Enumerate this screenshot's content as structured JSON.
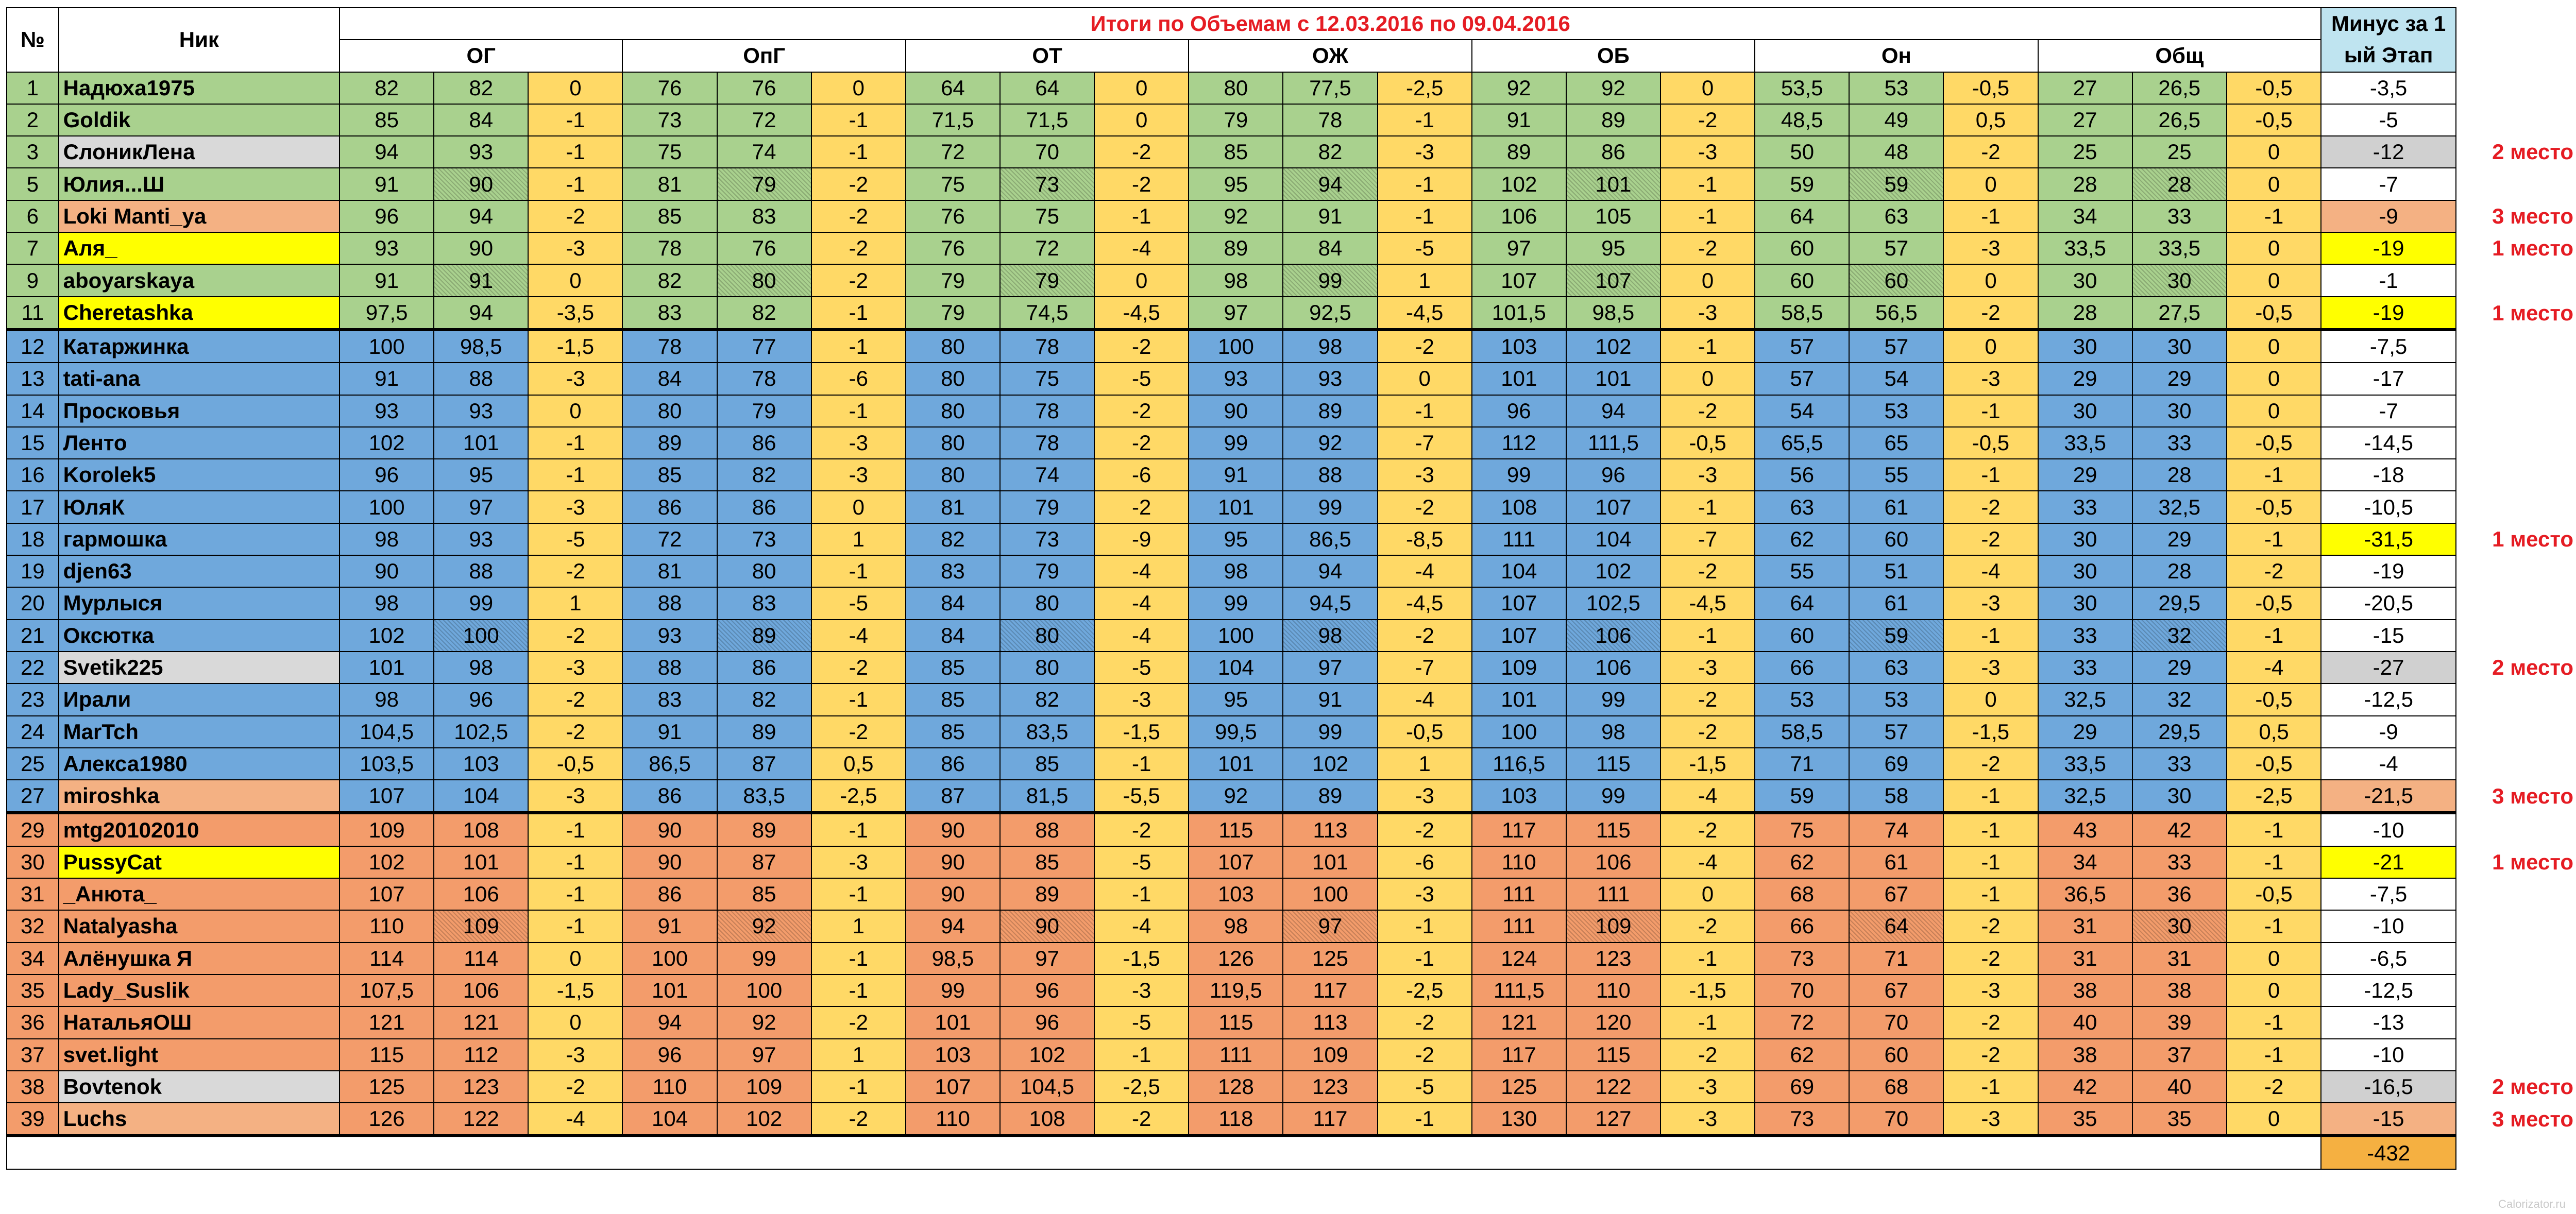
{
  "header": {
    "col_num": "№",
    "col_nick": "Ник",
    "title": "Итоги по Объемам с  12.03.2016 по 09.04.2016",
    "col_minus": "Минус за 1 ый Этап",
    "groups": [
      "ОГ",
      "ОпГ",
      "ОТ",
      "ОЖ",
      "ОБ",
      "Он",
      "Общ"
    ]
  },
  "colors": {
    "green": "#a9d18e",
    "blue": "#6fa8dc",
    "orange": "#f39c6b",
    "diff": "#ffd966",
    "highlight_yellow": "#ffff00",
    "highlight_gray": "#d0d0d0",
    "highlight_salmon": "#f4b183",
    "total": "#f5b041",
    "title_red": "#e51c23",
    "minus_header": "#bfe4f0"
  },
  "rows": [
    {
      "num": "1",
      "nick": "Надюха1975",
      "group": "green",
      "values": [
        "82",
        "82",
        "0",
        "76",
        "76",
        "0",
        "64",
        "64",
        "0",
        "80",
        "77,5",
        "-2,5",
        "92",
        "92",
        "0",
        "53,5",
        "53",
        "-0,5",
        "27",
        "26,5",
        "-0,5"
      ],
      "minus": "-3,5",
      "place": ""
    },
    {
      "num": "2",
      "nick": "Goldik",
      "group": "green",
      "values": [
        "85",
        "84",
        "-1",
        "73",
        "72",
        "-1",
        "71,5",
        "71,5",
        "0",
        "79",
        "78",
        "-1",
        "91",
        "89",
        "-2",
        "48,5",
        "49",
        "0,5",
        "27",
        "26,5",
        "-0,5"
      ],
      "minus": "-5",
      "place": ""
    },
    {
      "num": "3",
      "nick": "СлоникЛена",
      "group": "green",
      "nick_bg": "gray",
      "values": [
        "94",
        "93",
        "-1",
        "75",
        "74",
        "-1",
        "72",
        "70",
        "-2",
        "85",
        "82",
        "-3",
        "89",
        "86",
        "-3",
        "50",
        "48",
        "-2",
        "25",
        "25",
        "0"
      ],
      "minus": "-12",
      "minus_bg": "gray",
      "place": "2 место"
    },
    {
      "num": "5",
      "nick": "Юлия...Ш",
      "group": "green",
      "hatch": true,
      "values": [
        "91",
        "90",
        "-1",
        "81",
        "79",
        "-2",
        "75",
        "73",
        "-2",
        "95",
        "94",
        "-1",
        "102",
        "101",
        "-1",
        "59",
        "59",
        "0",
        "28",
        "28",
        "0"
      ],
      "minus": "-7",
      "place": ""
    },
    {
      "num": "6",
      "nick": "Loki Manti_ya",
      "group": "green",
      "nick_bg": "salmon",
      "values": [
        "96",
        "94",
        "-2",
        "85",
        "83",
        "-2",
        "76",
        "75",
        "-1",
        "92",
        "91",
        "-1",
        "106",
        "105",
        "-1",
        "64",
        "63",
        "-1",
        "34",
        "33",
        "-1"
      ],
      "minus": "-9",
      "minus_bg": "salmon",
      "place": "3 место"
    },
    {
      "num": "7",
      "nick": "Аля_",
      "group": "green",
      "nick_bg": "yellow",
      "values": [
        "93",
        "90",
        "-3",
        "78",
        "76",
        "-2",
        "76",
        "72",
        "-4",
        "89",
        "84",
        "-5",
        "97",
        "95",
        "-2",
        "60",
        "57",
        "-3",
        "33,5",
        "33,5",
        "0"
      ],
      "minus": "-19",
      "minus_bg": "yellow",
      "place": "1 место"
    },
    {
      "num": "9",
      "nick": "aboyarskaya",
      "group": "green",
      "hatch": true,
      "values": [
        "91",
        "91",
        "0",
        "82",
        "80",
        "-2",
        "79",
        "79",
        "0",
        "98",
        "99",
        "1",
        "107",
        "107",
        "0",
        "60",
        "60",
        "0",
        "30",
        "30",
        "0"
      ],
      "minus": "-1",
      "place": ""
    },
    {
      "num": "11",
      "nick": "Cheretashka",
      "group": "green",
      "nick_bg": "yellow",
      "values": [
        "97,5",
        "94",
        "-3,5",
        "83",
        "82",
        "-1",
        "79",
        "74,5",
        "-4,5",
        "97",
        "92,5",
        "-4,5",
        "101,5",
        "98,5",
        "-3",
        "58,5",
        "56,5",
        "-2",
        "28",
        "27,5",
        "-0,5"
      ],
      "minus": "-19",
      "minus_bg": "yellow",
      "place": "1 место"
    },
    {
      "num": "12",
      "nick": "Катаржинка",
      "group": "blue",
      "values": [
        "100",
        "98,5",
        "-1,5",
        "78",
        "77",
        "-1",
        "80",
        "78",
        "-2",
        "100",
        "98",
        "-2",
        "103",
        "102",
        "-1",
        "57",
        "57",
        "0",
        "30",
        "30",
        "0"
      ],
      "minus": "-7,5",
      "place": ""
    },
    {
      "num": "13",
      "nick": "tati-ana",
      "group": "blue",
      "values": [
        "91",
        "88",
        "-3",
        "84",
        "78",
        "-6",
        "80",
        "75",
        "-5",
        "93",
        "93",
        "0",
        "101",
        "101",
        "0",
        "57",
        "54",
        "-3",
        "29",
        "29",
        "0"
      ],
      "minus": "-17",
      "place": ""
    },
    {
      "num": "14",
      "nick": "Просковья",
      "group": "blue",
      "values": [
        "93",
        "93",
        "0",
        "80",
        "79",
        "-1",
        "80",
        "78",
        "-2",
        "90",
        "89",
        "-1",
        "96",
        "94",
        "-2",
        "54",
        "53",
        "-1",
        "30",
        "30",
        "0"
      ],
      "minus": "-7",
      "place": ""
    },
    {
      "num": "15",
      "nick": "Лento",
      "group": "blue",
      "values": [
        "102",
        "101",
        "-1",
        "89",
        "86",
        "-3",
        "80",
        "78",
        "-2",
        "99",
        "92",
        "-7",
        "112",
        "111,5",
        "-0,5",
        "65,5",
        "65",
        "-0,5",
        "33,5",
        "33",
        "-0,5"
      ],
      "minus": "-14,5",
      "place": ""
    },
    {
      "num": "16",
      "nick": "Korolek5",
      "group": "blue",
      "values": [
        "96",
        "95",
        "-1",
        "85",
        "82",
        "-3",
        "80",
        "74",
        "-6",
        "91",
        "88",
        "-3",
        "99",
        "96",
        "-3",
        "56",
        "55",
        "-1",
        "29",
        "28",
        "-1"
      ],
      "minus": "-18",
      "place": ""
    },
    {
      "num": "17",
      "nick": "ЮляК",
      "group": "blue",
      "values": [
        "100",
        "97",
        "-3",
        "86",
        "86",
        "0",
        "81",
        "79",
        "-2",
        "101",
        "99",
        "-2",
        "108",
        "107",
        "-1",
        "63",
        "61",
        "-2",
        "33",
        "32,5",
        "-0,5"
      ],
      "minus": "-10,5",
      "place": ""
    },
    {
      "num": "18",
      "nick": "гармошка",
      "group": "blue",
      "values": [
        "98",
        "93",
        "-5",
        "72",
        "73",
        "1",
        "82",
        "73",
        "-9",
        "95",
        "86,5",
        "-8,5",
        "111",
        "104",
        "-7",
        "62",
        "60",
        "-2",
        "30",
        "29",
        "-1"
      ],
      "minus": "-31,5",
      "minus_bg": "yellow",
      "place": "1 место"
    },
    {
      "num": "19",
      "nick": "djen63",
      "group": "blue",
      "values": [
        "90",
        "88",
        "-2",
        "81",
        "80",
        "-1",
        "83",
        "79",
        "-4",
        "98",
        "94",
        "-4",
        "104",
        "102",
        "-2",
        "55",
        "51",
        "-4",
        "30",
        "28",
        "-2"
      ],
      "minus": "-19",
      "place": ""
    },
    {
      "num": "20",
      "nick": "Мурлыся",
      "group": "blue",
      "values": [
        "98",
        "99",
        "1",
        "88",
        "83",
        "-5",
        "84",
        "80",
        "-4",
        "99",
        "94,5",
        "-4,5",
        "107",
        "102,5",
        "-4,5",
        "64",
        "61",
        "-3",
        "30",
        "29,5",
        "-0,5"
      ],
      "minus": "-20,5",
      "place": ""
    },
    {
      "num": "21",
      "nick": "Оксютка",
      "group": "blue",
      "hatch": true,
      "values": [
        "102",
        "100",
        "-2",
        "93",
        "89",
        "-4",
        "84",
        "80",
        "-4",
        "100",
        "98",
        "-2",
        "107",
        "106",
        "-1",
        "60",
        "59",
        "-1",
        "33",
        "32",
        "-1"
      ],
      "minus": "-15",
      "place": ""
    },
    {
      "num": "22",
      "nick": "Svetik225",
      "group": "blue",
      "nick_bg": "gray",
      "values": [
        "101",
        "98",
        "-3",
        "88",
        "86",
        "-2",
        "85",
        "80",
        "-5",
        "104",
        "97",
        "-7",
        "109",
        "106",
        "-3",
        "66",
        "63",
        "-3",
        "33",
        "29",
        "-4"
      ],
      "minus": "-27",
      "minus_bg": "gray",
      "place": "2 место"
    },
    {
      "num": "23",
      "nick": "Ирали",
      "group": "blue",
      "values": [
        "98",
        "96",
        "-2",
        "83",
        "82",
        "-1",
        "85",
        "82",
        "-3",
        "95",
        "91",
        "-4",
        "101",
        "99",
        "-2",
        "53",
        "53",
        "0",
        "32,5",
        "32",
        "-0,5"
      ],
      "minus": "-12,5",
      "place": ""
    },
    {
      "num": "24",
      "nick": "MarTch",
      "group": "blue",
      "values": [
        "104,5",
        "102,5",
        "-2",
        "91",
        "89",
        "-2",
        "85",
        "83,5",
        "-1,5",
        "99,5",
        "99",
        "-0,5",
        "100",
        "98",
        "-2",
        "58,5",
        "57",
        "-1,5",
        "29",
        "29,5",
        "0,5"
      ],
      "minus": "-9",
      "place": ""
    },
    {
      "num": "25",
      "nick": "Алекса1980",
      "group": "blue",
      "values": [
        "103,5",
        "103",
        "-0,5",
        "86,5",
        "87",
        "0,5",
        "86",
        "85",
        "-1",
        "101",
        "102",
        "1",
        "116,5",
        "115",
        "-1,5",
        "71",
        "69",
        "-2",
        "33,5",
        "33",
        "-0,5"
      ],
      "minus": "-4",
      "place": ""
    },
    {
      "num": "27",
      "nick": "miroshka",
      "group": "blue",
      "nick_bg": "salmon",
      "values": [
        "107",
        "104",
        "-3",
        "86",
        "83,5",
        "-2,5",
        "87",
        "81,5",
        "-5,5",
        "92",
        "89",
        "-3",
        "103",
        "99",
        "-4",
        "59",
        "58",
        "-1",
        "32,5",
        "30",
        "-2,5"
      ],
      "minus": "-21,5",
      "minus_bg": "salmon",
      "place": "3 место"
    },
    {
      "num": "29",
      "nick": "mtg20102010",
      "group": "orange",
      "values": [
        "109",
        "108",
        "-1",
        "90",
        "89",
        "-1",
        "90",
        "88",
        "-2",
        "115",
        "113",
        "-2",
        "117",
        "115",
        "-2",
        "75",
        "74",
        "-1",
        "43",
        "42",
        "-1"
      ],
      "minus": "-10",
      "place": ""
    },
    {
      "num": "30",
      "nick": "PussyCat",
      "group": "orange",
      "nick_bg": "yellow",
      "values": [
        "102",
        "101",
        "-1",
        "90",
        "87",
        "-3",
        "90",
        "85",
        "-5",
        "107",
        "101",
        "-6",
        "110",
        "106",
        "-4",
        "62",
        "61",
        "-1",
        "34",
        "33",
        "-1"
      ],
      "minus": "-21",
      "minus_bg": "yellow",
      "place": "1 место"
    },
    {
      "num": "31",
      "nick": "_Анюта_",
      "group": "orange",
      "values": [
        "107",
        "106",
        "-1",
        "86",
        "85",
        "-1",
        "90",
        "89",
        "-1",
        "103",
        "100",
        "-3",
        "111",
        "111",
        "0",
        "68",
        "67",
        "-1",
        "36,5",
        "36",
        "-0,5"
      ],
      "minus": "-7,5",
      "place": ""
    },
    {
      "num": "32",
      "nick": "Natalyasha",
      "group": "orange",
      "hatch": true,
      "values": [
        "110",
        "109",
        "-1",
        "91",
        "92",
        "1",
        "94",
        "90",
        "-4",
        "98",
        "97",
        "-1",
        "111",
        "109",
        "-2",
        "66",
        "64",
        "-2",
        "31",
        "30",
        "-1"
      ],
      "minus": "-10",
      "place": ""
    },
    {
      "num": "34",
      "nick": "Алёнушка Я",
      "group": "orange",
      "values": [
        "114",
        "114",
        "0",
        "100",
        "99",
        "-1",
        "98,5",
        "97",
        "-1,5",
        "126",
        "125",
        "-1",
        "124",
        "123",
        "-1",
        "73",
        "71",
        "-2",
        "31",
        "31",
        "0"
      ],
      "minus": "-6,5",
      "place": ""
    },
    {
      "num": "35",
      "nick": "Lady_Suslik",
      "group": "orange",
      "values": [
        "107,5",
        "106",
        "-1,5",
        "101",
        "100",
        "-1",
        "99",
        "96",
        "-3",
        "119,5",
        "117",
        "-2,5",
        "111,5",
        "110",
        "-1,5",
        "70",
        "67",
        "-3",
        "38",
        "38",
        "0"
      ],
      "minus": "-12,5",
      "place": ""
    },
    {
      "num": "36",
      "nick": "НатальяОШ",
      "group": "orange",
      "values": [
        "121",
        "121",
        "0",
        "94",
        "92",
        "-2",
        "101",
        "96",
        "-5",
        "115",
        "113",
        "-2",
        "121",
        "120",
        "-1",
        "72",
        "70",
        "-2",
        "40",
        "39",
        "-1"
      ],
      "minus": "-13",
      "place": ""
    },
    {
      "num": "37",
      "nick": "svet.light",
      "group": "orange",
      "values": [
        "115",
        "112",
        "-3",
        "96",
        "97",
        "1",
        "103",
        "102",
        "-1",
        "111",
        "109",
        "-2",
        "117",
        "115",
        "-2",
        "62",
        "60",
        "-2",
        "38",
        "37",
        "-1"
      ],
      "minus": "-10",
      "place": ""
    },
    {
      "num": "38",
      "nick": "Bovtenok",
      "group": "orange",
      "nick_bg": "gray",
      "values": [
        "125",
        "123",
        "-2",
        "110",
        "109",
        "-1",
        "107",
        "104,5",
        "-2,5",
        "128",
        "123",
        "-5",
        "125",
        "122",
        "-3",
        "69",
        "68",
        "-1",
        "42",
        "40",
        "-2"
      ],
      "minus": "-16,5",
      "minus_bg": "gray",
      "place": "2 место"
    },
    {
      "num": "39",
      "nick": "Luchs",
      "group": "orange",
      "nick_bg": "salmon",
      "values": [
        "126",
        "122",
        "-4",
        "104",
        "102",
        "-2",
        "110",
        "108",
        "-2",
        "118",
        "117",
        "-1",
        "130",
        "127",
        "-3",
        "73",
        "70",
        "-3",
        "35",
        "35",
        "0"
      ],
      "minus": "-15",
      "minus_bg": "salmon",
      "place": "3 место"
    }
  ],
  "total": "-432",
  "watermark": "Calorizator.ru"
}
